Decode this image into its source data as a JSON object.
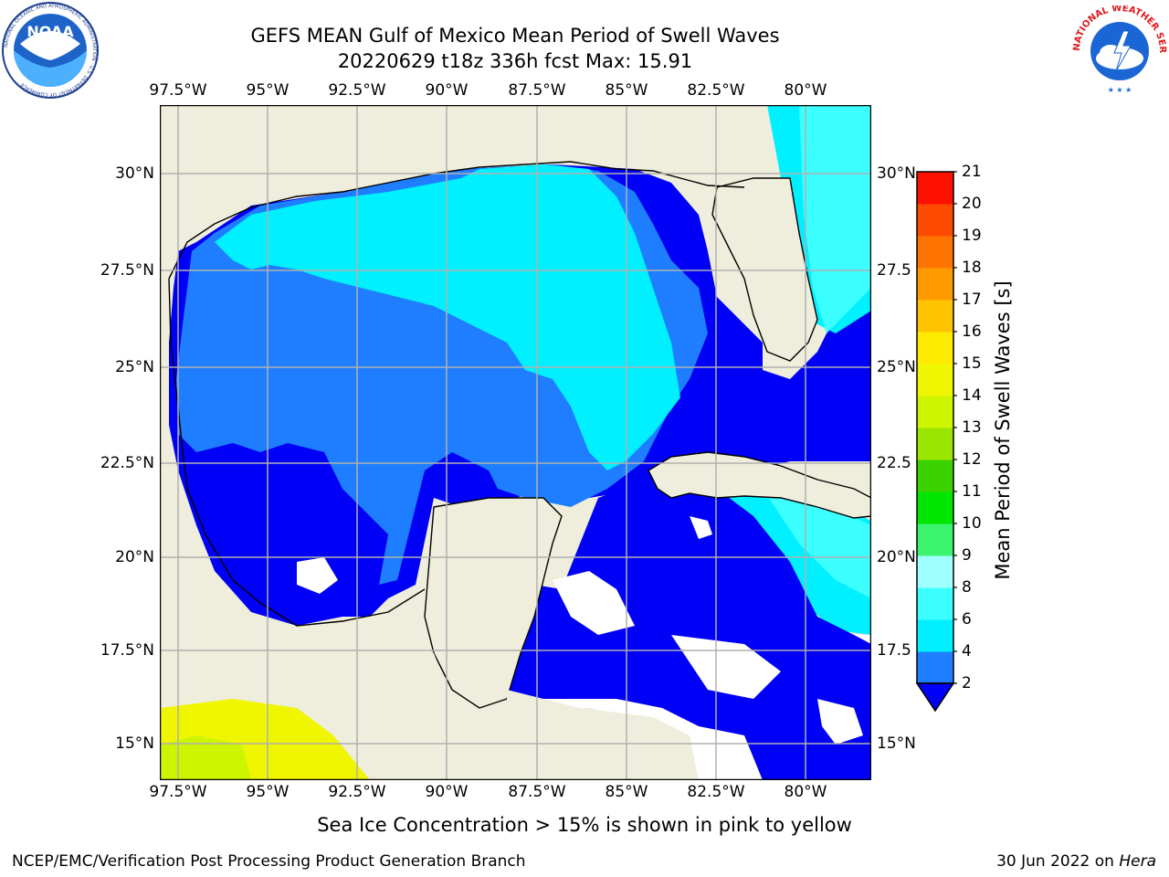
{
  "title": {
    "line1": "GEFS MEAN Gulf of Mexico Mean Period of Swell Waves",
    "line2": "20220629 t18z 336h fcst   Max: 15.91"
  },
  "map": {
    "lon_ticks": [
      "97.5°W",
      "95°W",
      "92.5°W",
      "90°W",
      "87.5°W",
      "85°W",
      "82.5°W",
      "80°W"
    ],
    "lat_ticks_left": [
      "30°N",
      "27.5°N",
      "25°N",
      "22.5°N",
      "20°N",
      "17.5°N",
      "15°N"
    ],
    "lat_ticks_right": [
      "30°N",
      "27.5",
      "25°N",
      "22.5",
      "20°N",
      "17.5",
      "15°N"
    ],
    "land_color": "#efeedc",
    "ocean_missing_color": "#ffffff"
  },
  "colorbar": {
    "title": "Mean Period of Swell Waves [s]",
    "levels": [
      "2",
      "4",
      "6",
      "8",
      "9",
      "10",
      "11",
      "12",
      "13",
      "14",
      "15",
      "16",
      "17",
      "18",
      "19",
      "20",
      "21"
    ],
    "colors": [
      "#0000f6",
      "#1e7eff",
      "#00f0ff",
      "#3cffff",
      "#a0ffff",
      "#3cf56e",
      "#00e600",
      "#3cd200",
      "#9be600",
      "#cdf500",
      "#f0f500",
      "#ffeb00",
      "#ffc300",
      "#ff9b00",
      "#ff7300",
      "#ff4b00",
      "#ff1000"
    ],
    "extend": "min"
  },
  "caption": "Sea Ice Concentration > 15% is shown in pink to yellow",
  "footer": {
    "left": "NCEP/EMC/Verification Post Processing Product Generation Branch",
    "right_date": "30 Jun 2022 on ",
    "right_host": "Hera"
  },
  "logos": {
    "noaa": "NOAA",
    "noaa_ring": "NATIONAL OCEANIC AND ATMOSPHERIC ADMINISTRATION · U.S. DEPARTMENT OF COMMERCE ·",
    "nws_ring": "NATIONAL WEATHER SERVICE"
  }
}
